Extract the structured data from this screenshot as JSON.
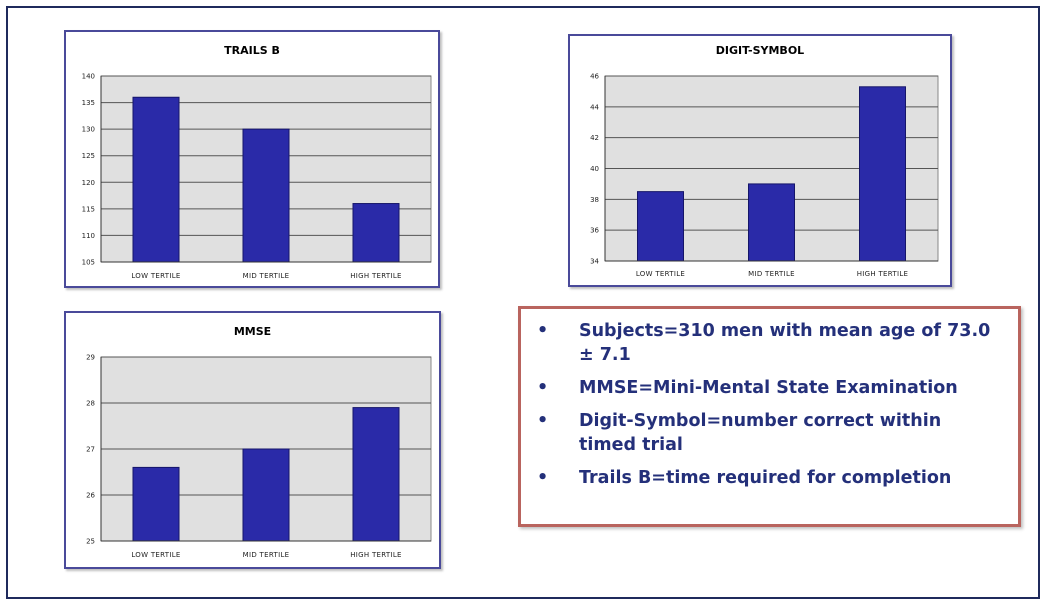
{
  "colors": {
    "bar": "#2a2aa8",
    "plot_bg": "#e0e0e0",
    "grid": "#555555",
    "notes_text": "#24307a",
    "notes_border": "#b9645e"
  },
  "chart_data": [
    {
      "id": "trails",
      "type": "bar",
      "title": "TRAILS B",
      "categories": [
        "LOW TERTILE",
        "MID TERTILE",
        "HIGH TERTILE"
      ],
      "values": [
        136,
        130,
        116
      ],
      "ylim": [
        105,
        140
      ],
      "yticks": [
        105,
        110,
        115,
        120,
        125,
        130,
        135,
        140
      ],
      "ytick_labels": [
        "105",
        "110",
        "115",
        "120",
        "125",
        "130",
        "135",
        "140"
      ],
      "xlabel": "",
      "ylabel": "",
      "grid": true,
      "legend": "none"
    },
    {
      "id": "digit",
      "type": "bar",
      "title": "DIGIT-SYMBOL",
      "categories": [
        "LOW TERTILE",
        "MID TERTILE",
        "HIGH TERTILE"
      ],
      "values": [
        38.5,
        39,
        45.3
      ],
      "ylim": [
        34,
        46
      ],
      "yticks": [
        34,
        36,
        38,
        40,
        42,
        44,
        46
      ],
      "ytick_labels": [
        "34",
        "36",
        "38",
        "40",
        "42",
        "44",
        "46"
      ],
      "xlabel": "",
      "ylabel": "",
      "grid": true,
      "legend": "none"
    },
    {
      "id": "mmse",
      "type": "bar",
      "title": "MMSE",
      "categories": [
        "LOW TERTILE",
        "MID TERTILE",
        "HIGH TERTILE"
      ],
      "values": [
        26.6,
        27.0,
        27.9
      ],
      "ylim": [
        25,
        29
      ],
      "yticks": [
        25,
        26,
        27,
        28,
        29
      ],
      "ytick_labels": [
        "25",
        "26",
        "27",
        "28",
        "29"
      ],
      "xlabel": "",
      "ylabel": "",
      "grid": true,
      "legend": "none"
    }
  ],
  "notes": {
    "bullet": "•",
    "items": [
      "Subjects=310 men with mean age of 73.0 ± 7.1",
      "MMSE=Mini-Mental State Examination",
      "Digit-Symbol=number correct within timed trial",
      "Trails B=time required for completion"
    ]
  }
}
